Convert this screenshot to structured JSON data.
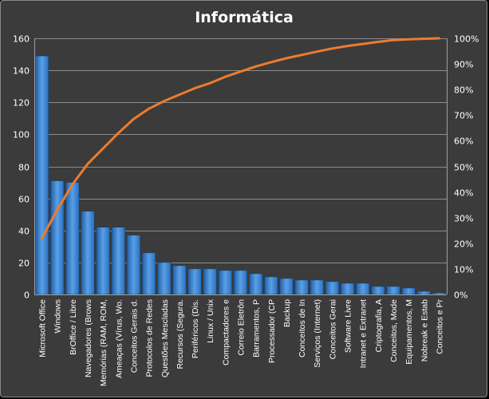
{
  "chart_data": {
    "type": "bar",
    "title": "Informática",
    "categories": [
      "Microsoft Office",
      "Windows",
      "BrOffice / Libre",
      "Navegadores (Brows",
      "Memórias (RAM, ROM,",
      "Ameaças (Vírus, Wo.",
      "Conceitos Gerais d.",
      "Protocolos de Redes",
      "Questões Mescladas",
      "Recursos (Segura.",
      "Periféricos (Dis.",
      "Linux / Unix",
      "Compactadores e",
      "Correio Eletrôn",
      "Barramentos, P",
      "Processador (CP",
      "Backup",
      "Conceitos de In",
      "Serviços (Internet)",
      "Conceitos Gerai",
      "Software Livre",
      "Intranet e Extranet",
      "Criptografia, A",
      "Conceitos, Mode",
      "Equipamentos, M",
      "Nobreak e Estab",
      "Conceitos e Pr"
    ],
    "series": [
      {
        "type": "bar",
        "values": [
          149,
          71,
          70,
          52,
          42,
          42,
          37,
          26,
          20,
          18,
          16,
          16,
          15,
          15,
          13,
          11,
          10,
          9,
          9,
          8,
          7,
          7,
          5,
          5,
          4,
          2,
          1
        ]
      },
      {
        "type": "line",
        "axis": "right",
        "values": [
          22,
          33,
          43,
          51,
          57,
          63,
          68.5,
          72.5,
          75.5,
          78,
          80.5,
          82.5,
          85,
          87,
          89,
          90.7,
          92.2,
          93.5,
          94.8,
          96,
          97,
          97.8,
          98.6,
          99.3,
          99.6,
          99.8,
          100
        ]
      }
    ],
    "ylim": [
      0,
      160
    ],
    "yticks": [
      "0",
      "20",
      "40",
      "60",
      "80",
      "100",
      "120",
      "140",
      "160"
    ],
    "y2lim": [
      0,
      100
    ],
    "y2ticks": [
      "0%",
      "10%",
      "20%",
      "30%",
      "40%",
      "50%",
      "60%",
      "70%",
      "80%",
      "90%",
      "100%"
    ],
    "grid": true,
    "legend": "none",
    "colors": {
      "bar": "#4f8fd6",
      "bar_dark": "#1f5fa8",
      "line": "#ec7c30",
      "background": "#3b3b3b"
    }
  }
}
